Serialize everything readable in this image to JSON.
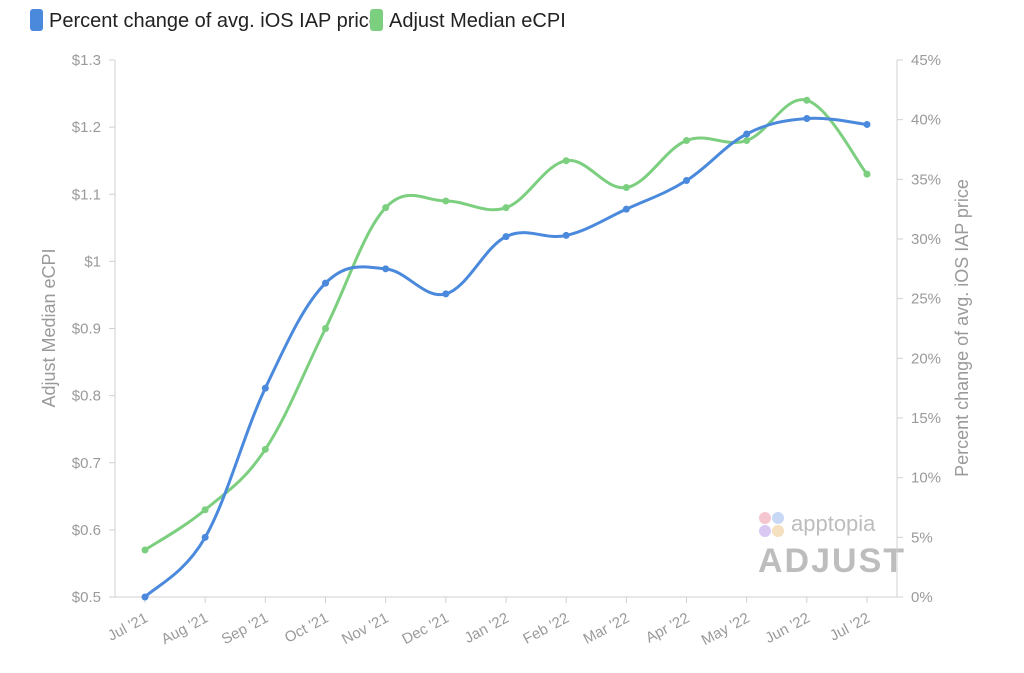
{
  "chart_data": {
    "type": "line",
    "categories": [
      "Jul '21",
      "Aug '21",
      "Sep '21",
      "Oct '21",
      "Nov '21",
      "Dec '21",
      "Jan '22",
      "Feb '22",
      "Mar '22",
      "Apr '22",
      "May '22",
      "Jun '22",
      "Jul '22"
    ],
    "series": [
      {
        "name": "Percent change of avg. iOS IAP price",
        "axis": "right",
        "color": "#4a89dc",
        "values": [
          0,
          5,
          17.5,
          26.3,
          27.5,
          25.4,
          30.2,
          30.3,
          32.5,
          34.9,
          38.8,
          40.1,
          39.6
        ]
      },
      {
        "name": "Adjust Median eCPI",
        "axis": "left",
        "color": "#7dcf80",
        "values": [
          0.57,
          0.63,
          0.72,
          0.9,
          1.08,
          1.09,
          1.08,
          1.15,
          1.11,
          1.18,
          1.18,
          1.24,
          1.13
        ]
      }
    ],
    "y_left": {
      "label": "Adjust Median eCPI",
      "range": [
        0.5,
        1.3
      ],
      "ticks": [
        "$0.5",
        "$0.6",
        "$0.7",
        "$0.8",
        "$0.9",
        "$1",
        "$1.1",
        "$1.2",
        "$1.3"
      ]
    },
    "y_right": {
      "label": "Percent change of avg. iOS IAP price",
      "range": [
        0,
        45
      ],
      "ticks": [
        "0%",
        "5%",
        "10%",
        "15%",
        "20%",
        "25%",
        "30%",
        "35%",
        "40%",
        "45%"
      ]
    },
    "legend_position": "top-left",
    "grid": false
  },
  "watermarks": {
    "apptopia": "apptopia",
    "adjust": "ADJUST"
  }
}
